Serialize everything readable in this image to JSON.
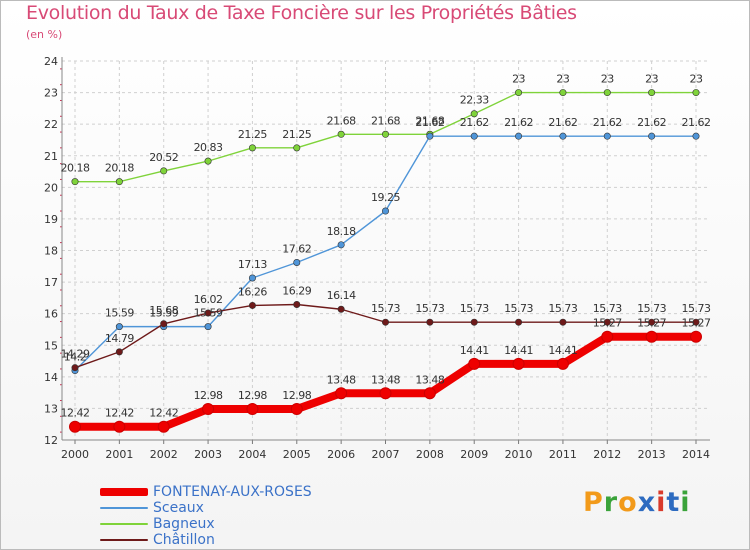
{
  "title": "Evolution du Taux de Taxe Foncière sur les Propriétés Bâties",
  "subtitle": "(en %)",
  "logo": {
    "text": "Proxiti",
    "colors": [
      "#f29a1a",
      "#3aa33a",
      "#f29a1a",
      "#2d6bc0",
      "#d93a2a",
      "#2d6bc0",
      "#3aa33a"
    ]
  },
  "chart_data": {
    "type": "line",
    "title": "Evolution du Taux de Taxe Foncière sur les Propriétés Bâties",
    "ylabel": "(en %)",
    "xlabel": "",
    "ylim": [
      12,
      24
    ],
    "yticks": [
      "12",
      "13",
      "14",
      "15",
      "16",
      "17",
      "18",
      "19",
      "20",
      "21",
      "22",
      "23",
      "24"
    ],
    "categories": [
      "2000",
      "2001",
      "2002",
      "2003",
      "2004",
      "2005",
      "2006",
      "2007",
      "2008",
      "2009",
      "2010",
      "2011",
      "2012",
      "2013",
      "2014"
    ],
    "series": [
      {
        "name": "FONTENAY-AUX-ROSES",
        "color": "#ee0000",
        "values": [
          12.42,
          12.42,
          12.42,
          12.98,
          12.98,
          12.98,
          13.48,
          13.48,
          13.48,
          14.41,
          14.41,
          14.41,
          15.27,
          15.27,
          15.27
        ],
        "labels": [
          "12.42",
          "12.42",
          "12.42",
          "12.98",
          "12.98",
          "12.98",
          "13.48",
          "13.48",
          "13.48",
          "14.41",
          "14.41",
          "14.41",
          "15.27",
          "15.27",
          "15.27"
        ]
      },
      {
        "name": "Sceaux",
        "color": "#4f95d8",
        "values": [
          14.2,
          15.59,
          15.59,
          15.59,
          17.13,
          17.62,
          18.18,
          19.25,
          21.62,
          21.62,
          21.62,
          21.62,
          21.62,
          21.62,
          21.62
        ],
        "labels": [
          "14.2",
          "15.59",
          "15.59",
          "15.59",
          "17.13",
          "17.62",
          "18.18",
          "19.25",
          "21.62",
          "21.62",
          "21.62",
          "21.62",
          "21.62",
          "21.62",
          "21.62"
        ]
      },
      {
        "name": "Bagneux",
        "color": "#7fd33a",
        "values": [
          20.18,
          20.18,
          20.52,
          20.83,
          21.25,
          21.25,
          21.68,
          21.68,
          21.68,
          22.33,
          23,
          23,
          23,
          23,
          23
        ],
        "labels": [
          "20.18",
          "20.18",
          "20.52",
          "20.83",
          "21.25",
          "21.25",
          "21.68",
          "21.68",
          "21.68",
          "22.33",
          "23",
          "23",
          "23",
          "23",
          "23"
        ]
      },
      {
        "name": "Châtillon",
        "color": "#6e1a1a",
        "values": [
          14.29,
          14.79,
          15.68,
          16.02,
          16.26,
          16.29,
          16.14,
          15.73,
          15.73,
          15.73,
          15.73,
          15.73,
          15.73,
          15.73,
          15.73
        ],
        "labels": [
          "14.29",
          "14.79",
          "15.68",
          "16.02",
          "16.26",
          "16.29",
          "16.14",
          "15.73",
          "15.73",
          "15.73",
          "15.73",
          "15.73",
          "15.73",
          "15.73",
          "15.73"
        ]
      }
    ],
    "legend": [
      "FONTENAY-AUX-ROSES",
      "Sceaux",
      "Bagneux",
      "Châtillon"
    ],
    "legend_position": "bottom-left",
    "grid": true
  }
}
